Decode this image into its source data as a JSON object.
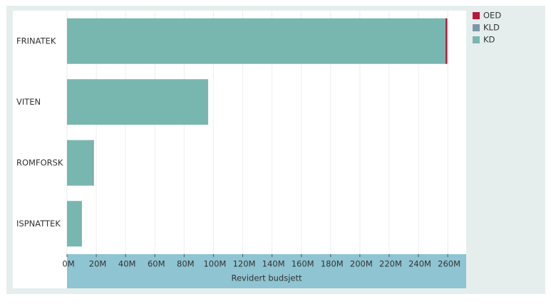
{
  "chart_data": {
    "type": "stacked-barh",
    "xlabel": "Revidert budsjett",
    "categories": [
      "FRINATEK",
      "VITEN",
      "ROMFORSK",
      "ISPNATTEK"
    ],
    "series": [
      {
        "name": "KD",
        "color": "#78b7b0",
        "values": [
          258.5,
          96.4,
          17.5,
          10.2
        ]
      },
      {
        "name": "KLD",
        "color": "#7b98a9",
        "values": [
          0,
          0,
          0.8,
          0
        ]
      },
      {
        "name": "OED",
        "color": "#b8163c",
        "values": [
          1.2,
          0,
          0,
          0
        ]
      }
    ],
    "xlim": [
      0,
      272.6
    ],
    "xticks": [
      {
        "value": 0,
        "label": "0M"
      },
      {
        "value": 20,
        "label": "20M"
      },
      {
        "value": 40,
        "label": "40M"
      },
      {
        "value": 60,
        "label": "60M"
      },
      {
        "value": 80,
        "label": "80M"
      },
      {
        "value": 100,
        "label": "100M"
      },
      {
        "value": 120,
        "label": "120M"
      },
      {
        "value": 140,
        "label": "140M"
      },
      {
        "value": 160,
        "label": "160M"
      },
      {
        "value": 180,
        "label": "180M"
      },
      {
        "value": 200,
        "label": "200M"
      },
      {
        "value": 220,
        "label": "220M"
      },
      {
        "value": 240,
        "label": "240M"
      },
      {
        "value": 260,
        "label": "260M"
      }
    ],
    "grid": true,
    "legend": "right"
  }
}
